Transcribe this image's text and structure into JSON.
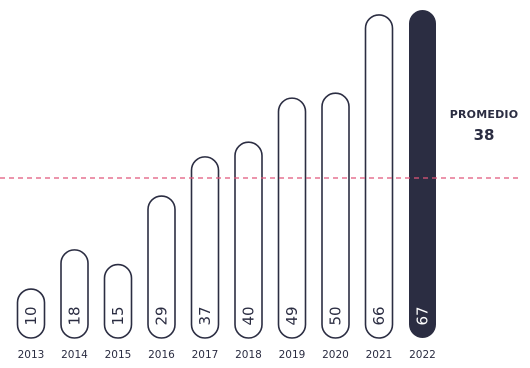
{
  "chart_data": {
    "type": "bar",
    "categories": [
      "2013",
      "2014",
      "2015",
      "2016",
      "2017",
      "2018",
      "2019",
      "2020",
      "2021",
      "2022"
    ],
    "values": [
      10,
      18,
      15,
      29,
      37,
      40,
      49,
      50,
      66,
      67
    ],
    "ylim": [
      0,
      67
    ],
    "grid": false,
    "highlight_index": 9,
    "annotations": {
      "average_label": "PROMEDIO",
      "average_value": 38
    },
    "colors": {
      "bar_fill": "#ffffff",
      "bar_outline": "#2b2d42",
      "highlight_fill": "#2b2d42",
      "highlight_text": "#ffffff",
      "average_line": "#e0567a",
      "text": "#2b2d42"
    }
  }
}
